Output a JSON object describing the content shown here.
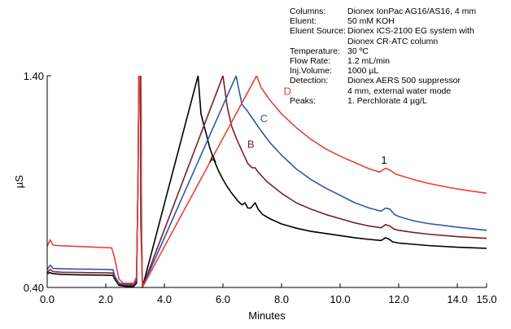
{
  "chart_data": {
    "type": "line",
    "title": "",
    "xlabel": "Minutes",
    "ylabel": "µS",
    "xlim": [
      0.0,
      15.0
    ],
    "ylim": [
      0.4,
      1.4
    ],
    "x_ticks": [
      "0.0",
      "2.0",
      "4.0",
      "6.0",
      "8.0",
      "10.0",
      "12.0",
      "14.0",
      "15.0"
    ],
    "x_tick_values": [
      0,
      2,
      4,
      6,
      8,
      10,
      12,
      14,
      15
    ],
    "y_ticks": [
      "0.40",
      "1.40"
    ],
    "y_tick_values": [
      0.4,
      1.4
    ],
    "grid": false,
    "series": [
      {
        "name": "A",
        "color": "#000000",
        "points": [
          [
            0.0,
            0.465
          ],
          [
            0.1,
            0.47
          ],
          [
            0.2,
            0.465
          ],
          [
            0.5,
            0.462
          ],
          [
            1.0,
            0.46
          ],
          [
            1.5,
            0.459
          ],
          [
            2.0,
            0.458
          ],
          [
            2.25,
            0.457
          ],
          [
            2.3,
            0.44
          ],
          [
            2.45,
            0.41
          ],
          [
            2.7,
            0.405
          ],
          [
            2.95,
            0.405
          ],
          [
            3.05,
            0.42
          ],
          [
            3.1,
            0.9
          ],
          [
            3.13,
            1.4
          ],
          [
            3.18,
            1.4
          ],
          [
            3.2,
            0.7
          ],
          [
            3.25,
            0.4
          ],
          [
            5.15,
            1.4
          ],
          [
            5.25,
            1.22
          ],
          [
            5.4,
            1.14
          ],
          [
            5.55,
            1.06
          ],
          [
            5.7,
            1.0
          ],
          [
            5.85,
            0.95
          ],
          [
            6.0,
            0.91
          ],
          [
            6.15,
            0.875
          ],
          [
            6.3,
            0.845
          ],
          [
            6.5,
            0.81
          ],
          [
            6.65,
            0.79
          ],
          [
            6.75,
            0.8
          ],
          [
            6.85,
            0.775
          ],
          [
            6.95,
            0.775
          ],
          [
            7.1,
            0.8
          ],
          [
            7.2,
            0.77
          ],
          [
            7.35,
            0.745
          ],
          [
            7.6,
            0.725
          ],
          [
            8.0,
            0.7
          ],
          [
            8.5,
            0.68
          ],
          [
            9.0,
            0.665
          ],
          [
            9.5,
            0.655
          ],
          [
            10.0,
            0.645
          ],
          [
            10.5,
            0.635
          ],
          [
            11.0,
            0.627
          ],
          [
            11.4,
            0.622
          ],
          [
            11.55,
            0.635
          ],
          [
            11.65,
            0.63
          ],
          [
            11.8,
            0.615
          ],
          [
            12.0,
            0.61
          ],
          [
            12.5,
            0.604
          ],
          [
            13.0,
            0.598
          ],
          [
            14.0,
            0.59
          ],
          [
            15.0,
            0.585
          ]
        ]
      },
      {
        "name": "B",
        "color": "#7a1f2b",
        "points": [
          [
            0.0,
            0.47
          ],
          [
            0.1,
            0.485
          ],
          [
            0.2,
            0.475
          ],
          [
            0.5,
            0.472
          ],
          [
            1.0,
            0.471
          ],
          [
            1.5,
            0.47
          ],
          [
            2.0,
            0.469
          ],
          [
            2.25,
            0.468
          ],
          [
            2.3,
            0.445
          ],
          [
            2.45,
            0.415
          ],
          [
            2.7,
            0.41
          ],
          [
            2.95,
            0.41
          ],
          [
            3.05,
            0.43
          ],
          [
            3.1,
            0.9
          ],
          [
            3.13,
            1.4
          ],
          [
            3.2,
            1.4
          ],
          [
            3.22,
            0.7
          ],
          [
            3.25,
            0.4
          ],
          [
            6.0,
            1.4
          ],
          [
            6.15,
            1.25
          ],
          [
            6.3,
            1.16
          ],
          [
            6.5,
            1.09
          ],
          [
            6.7,
            1.03
          ],
          [
            6.85,
            0.985
          ],
          [
            7.0,
            0.965
          ],
          [
            7.1,
            0.965
          ],
          [
            7.2,
            0.945
          ],
          [
            7.5,
            0.9
          ],
          [
            8.0,
            0.845
          ],
          [
            8.5,
            0.8
          ],
          [
            9.0,
            0.77
          ],
          [
            9.5,
            0.745
          ],
          [
            10.0,
            0.725
          ],
          [
            10.5,
            0.705
          ],
          [
            11.0,
            0.69
          ],
          [
            11.4,
            0.682
          ],
          [
            11.55,
            0.697
          ],
          [
            11.7,
            0.69
          ],
          [
            11.85,
            0.675
          ],
          [
            12.0,
            0.67
          ],
          [
            12.5,
            0.66
          ],
          [
            13.0,
            0.652
          ],
          [
            14.0,
            0.64
          ],
          [
            15.0,
            0.632
          ]
        ]
      },
      {
        "name": "C",
        "color": "#2e56b0",
        "points": [
          [
            0.0,
            0.485
          ],
          [
            0.1,
            0.505
          ],
          [
            0.2,
            0.49
          ],
          [
            0.5,
            0.488
          ],
          [
            1.0,
            0.487
          ],
          [
            1.5,
            0.486
          ],
          [
            2.0,
            0.485
          ],
          [
            2.25,
            0.484
          ],
          [
            2.3,
            0.455
          ],
          [
            2.45,
            0.42
          ],
          [
            2.7,
            0.415
          ],
          [
            2.95,
            0.415
          ],
          [
            3.05,
            0.44
          ],
          [
            3.1,
            0.9
          ],
          [
            3.13,
            1.4
          ],
          [
            3.2,
            1.4
          ],
          [
            3.22,
            0.7
          ],
          [
            3.25,
            0.4
          ],
          [
            6.45,
            1.4
          ],
          [
            6.55,
            1.33
          ],
          [
            6.65,
            1.265
          ],
          [
            6.8,
            1.24
          ],
          [
            7.0,
            1.2
          ],
          [
            7.3,
            1.14
          ],
          [
            7.6,
            1.085
          ],
          [
            8.0,
            1.025
          ],
          [
            8.5,
            0.96
          ],
          [
            9.0,
            0.91
          ],
          [
            9.5,
            0.87
          ],
          [
            10.0,
            0.835
          ],
          [
            10.5,
            0.8
          ],
          [
            11.0,
            0.775
          ],
          [
            11.4,
            0.76
          ],
          [
            11.55,
            0.775
          ],
          [
            11.7,
            0.77
          ],
          [
            11.85,
            0.745
          ],
          [
            12.0,
            0.735
          ],
          [
            12.5,
            0.715
          ],
          [
            13.0,
            0.702
          ],
          [
            14.0,
            0.685
          ],
          [
            15.0,
            0.67
          ]
        ]
      },
      {
        "name": "D",
        "color": "#e8413a",
        "points": [
          [
            0.0,
            0.595
          ],
          [
            0.1,
            0.625
          ],
          [
            0.2,
            0.6
          ],
          [
            0.5,
            0.597
          ],
          [
            1.0,
            0.594
          ],
          [
            1.5,
            0.591
          ],
          [
            2.0,
            0.588
          ],
          [
            2.2,
            0.587
          ],
          [
            2.3,
            0.54
          ],
          [
            2.45,
            0.44
          ],
          [
            2.6,
            0.42
          ],
          [
            2.95,
            0.42
          ],
          [
            3.05,
            0.45
          ],
          [
            3.1,
            0.9
          ],
          [
            3.13,
            1.4
          ],
          [
            3.2,
            1.4
          ],
          [
            3.22,
            0.7
          ],
          [
            3.25,
            0.4
          ],
          [
            7.15,
            1.4
          ],
          [
            7.3,
            1.345
          ],
          [
            7.6,
            1.285
          ],
          [
            8.0,
            1.22
          ],
          [
            8.5,
            1.155
          ],
          [
            9.0,
            1.1
          ],
          [
            9.5,
            1.055
          ],
          [
            10.0,
            1.02
          ],
          [
            10.5,
            0.99
          ],
          [
            11.0,
            0.96
          ],
          [
            11.35,
            0.945
          ],
          [
            11.55,
            0.963
          ],
          [
            11.7,
            0.955
          ],
          [
            11.9,
            0.935
          ],
          [
            12.5,
            0.91
          ],
          [
            13.0,
            0.892
          ],
          [
            14.0,
            0.865
          ],
          [
            15.0,
            0.845
          ]
        ]
      }
    ],
    "curve_labels": [
      {
        "text": "A",
        "color": "#000000",
        "x": 5.65,
        "y": 0.99
      },
      {
        "text": "B",
        "color": "#7a1f2b",
        "x": 6.95,
        "y": 1.06
      },
      {
        "text": "C",
        "color": "#2e56b0",
        "x": 7.4,
        "y": 1.18
      },
      {
        "text": "D",
        "color": "#e8413a",
        "x": 8.2,
        "y": 1.31
      },
      {
        "text": "1",
        "color": "#000000",
        "x": 11.5,
        "y": 0.985
      }
    ]
  },
  "conditions": [
    {
      "label": "Columns:",
      "value": [
        "Dionex IonPac AG16/AS16, 4 mm"
      ]
    },
    {
      "label": "Eluent:",
      "value": [
        "50 mM KOH"
      ]
    },
    {
      "label": "Eluent Source:",
      "value": [
        "Dionex ICS-2100 EG system with",
        "Dionex CR-ATC column"
      ]
    },
    {
      "label": "Temperature:",
      "value": [
        "30 ºC"
      ]
    },
    {
      "label": "Flow Rate:",
      "value": [
        "1.2 mL/min"
      ]
    },
    {
      "label": "Inj.Volume:",
      "value": [
        "1000 µL"
      ]
    },
    {
      "label": "Detection:",
      "value": [
        "Dionex AERS 500 suppressor",
        "4 mm, external water mode"
      ]
    },
    {
      "label": "Peaks:",
      "value": [
        "1.    Perchlorate 4 µg/L"
      ]
    }
  ]
}
